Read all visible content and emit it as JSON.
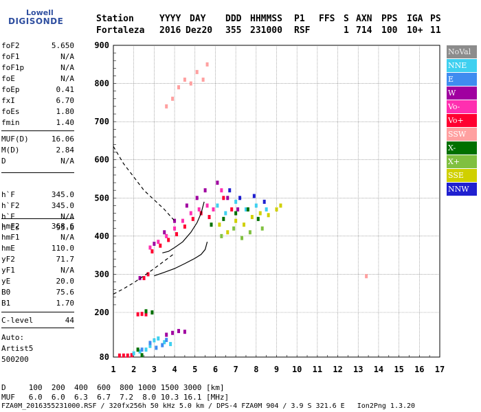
{
  "logo": {
    "line1": "Lowell",
    "line2": "DIGISONDE"
  },
  "header": {
    "labels": [
      "Station",
      "YYYY",
      "DAY",
      "DDD",
      "HHMMSS",
      "P1",
      "FFS",
      "S",
      "AXN",
      "PPS",
      "IGA",
      "PS"
    ],
    "values": [
      "Fortaleza",
      "2016",
      "Dez20",
      "355",
      "231000",
      "RSF",
      "",
      "1",
      "714",
      "100",
      "10+",
      "11"
    ]
  },
  "params_group1": [
    {
      "name": "foF2",
      "value": "5.650"
    },
    {
      "name": "foF1",
      "value": "N/A"
    },
    {
      "name": "foF1p",
      "value": "N/A"
    },
    {
      "name": "foE",
      "value": "N/A"
    },
    {
      "name": "foEp",
      "value": "0.41"
    },
    {
      "name": "fxI",
      "value": "6.70"
    },
    {
      "name": "foEs",
      "value": "1.80"
    },
    {
      "name": "fmin",
      "value": "1.40"
    }
  ],
  "params_group2": [
    {
      "name": "MUF(D)",
      "value": "16.06"
    },
    {
      "name": "M(D)",
      "value": "2.84"
    },
    {
      "name": "D",
      "value": "N/A"
    }
  ],
  "params_group3": [
    {
      "name": "h`F",
      "value": "345.0"
    },
    {
      "name": "h`F2",
      "value": "345.0"
    },
    {
      "name": "h`E",
      "value": "N/A"
    },
    {
      "name": "h`Es",
      "value": "95.0"
    }
  ],
  "params_group4": [
    {
      "name": "hmF2",
      "value": "368.6"
    },
    {
      "name": "hmF1",
      "value": "N/A"
    },
    {
      "name": "hmE",
      "value": "110.0"
    },
    {
      "name": "yF2",
      "value": "71.7"
    },
    {
      "name": "yF1",
      "value": "N/A"
    },
    {
      "name": "yE",
      "value": "20.0"
    },
    {
      "name": "B0",
      "value": "75.6"
    },
    {
      "name": "B1",
      "value": "1.70"
    }
  ],
  "params_group5": [
    {
      "name": "C-level",
      "value": "44"
    }
  ],
  "autoscale": {
    "line1": "Auto:",
    "line2": "Artist5",
    "line3": "500200"
  },
  "legend": [
    {
      "label": "NoVal",
      "color": "#8c8c8c"
    },
    {
      "label": "NNE",
      "color": "#3fd0f0"
    },
    {
      "label": "E",
      "color": "#3f8cf0"
    },
    {
      "label": "W",
      "color": "#a000a0"
    },
    {
      "label": "Vo-",
      "color": "#ff2fb0"
    },
    {
      "label": "Vo+",
      "color": "#ff0030"
    },
    {
      "label": "SSW",
      "color": "#ffa0a0"
    },
    {
      "label": "X-",
      "color": "#007000"
    },
    {
      "label": "X+",
      "color": "#80c040"
    },
    {
      "label": "SSE",
      "color": "#d0d000"
    },
    {
      "label": "NNW",
      "color": "#2020d0"
    }
  ],
  "footer": {
    "d_row": "D     100  200  400  600  800 1000 1500 3000 [km]",
    "muf_row": "MUF   6.0  6.0  6.3  6.7  7.2  8.0 10.3 16.1 [MHz]",
    "status": "FZA0M_2016355231000.RSF / 320fx256h 50 kHz 5.0 km / DPS-4 FZA0M 904 / 3.9 S 321.6 E   Ion2Png 1.3.20"
  },
  "chart_data": {
    "type": "scatter",
    "x_ticks": [
      "1",
      "2",
      "3",
      "4",
      "5",
      "6",
      "7",
      "8",
      "9",
      "10",
      "11",
      "12",
      "13",
      "14",
      "15",
      "16",
      "17"
    ],
    "y_ticks": [
      "80",
      "200",
      "300",
      "400",
      "500",
      "600",
      "700",
      "800",
      "900"
    ],
    "xlim": [
      1,
      17
    ],
    "ylim": [
      80,
      900
    ],
    "grid": true,
    "series": [
      {
        "color_key": "Vo+",
        "points": [
          [
            1.3,
            84
          ],
          [
            1.5,
            84
          ],
          [
            1.7,
            84
          ],
          [
            1.9,
            85
          ],
          [
            2.2,
            195
          ],
          [
            2.4,
            196
          ],
          [
            2.6,
            195
          ],
          [
            2.5,
            290
          ],
          [
            2.7,
            300
          ]
        ]
      },
      {
        "color_key": "NNE",
        "points": [
          [
            2.0,
            90
          ],
          [
            2.3,
            95
          ],
          [
            2.6,
            100
          ],
          [
            2.8,
            110
          ],
          [
            3.0,
            125
          ],
          [
            3.2,
            130
          ],
          [
            3.5,
            120
          ],
          [
            3.8,
            115
          ]
        ]
      },
      {
        "color_key": "E",
        "points": [
          [
            2.4,
            100
          ],
          [
            2.8,
            118
          ],
          [
            3.1,
            105
          ],
          [
            3.4,
            112
          ],
          [
            3.6,
            126
          ]
        ]
      },
      {
        "color_key": "W",
        "points": [
          [
            3.6,
            140
          ],
          [
            3.9,
            145
          ],
          [
            4.2,
            150
          ],
          [
            4.5,
            148
          ],
          [
            2.3,
            290
          ]
        ]
      },
      {
        "color_key": "X-",
        "points": [
          [
            2.4,
            85
          ],
          [
            2.2,
            100
          ],
          [
            2.6,
            203
          ],
          [
            2.9,
            200
          ]
        ]
      },
      {
        "color_key": "SSW",
        "points": [
          [
            3.6,
            740
          ],
          [
            3.9,
            760
          ],
          [
            4.2,
            790
          ],
          [
            4.5,
            810
          ],
          [
            4.8,
            800
          ],
          [
            5.1,
            830
          ],
          [
            5.4,
            810
          ],
          [
            5.6,
            850
          ],
          [
            13.4,
            295
          ]
        ]
      },
      {
        "color_key": "Vo-",
        "points": [
          [
            2.8,
            370
          ],
          [
            3.2,
            385
          ],
          [
            3.6,
            400
          ],
          [
            4.0,
            420
          ],
          [
            4.4,
            440
          ],
          [
            4.8,
            460
          ],
          [
            5.2,
            470
          ],
          [
            5.6,
            480
          ],
          [
            5.9,
            470
          ],
          [
            6.3,
            520
          ]
        ]
      },
      {
        "color_key": "Vo+",
        "points": [
          [
            2.9,
            360
          ],
          [
            3.3,
            375
          ],
          [
            3.7,
            390
          ],
          [
            4.1,
            405
          ],
          [
            4.5,
            425
          ],
          [
            4.9,
            445
          ],
          [
            5.3,
            460
          ],
          [
            5.7,
            450
          ],
          [
            6.4,
            500
          ],
          [
            6.8,
            470
          ]
        ]
      },
      {
        "color_key": "W",
        "points": [
          [
            3.0,
            380
          ],
          [
            3.5,
            410
          ],
          [
            4.0,
            440
          ],
          [
            4.6,
            480
          ],
          [
            5.1,
            500
          ],
          [
            5.5,
            520
          ],
          [
            6.1,
            540
          ],
          [
            6.6,
            500
          ],
          [
            7.1,
            470
          ]
        ]
      },
      {
        "color_key": "SSE",
        "points": [
          [
            6.2,
            430
          ],
          [
            6.6,
            410
          ],
          [
            7.0,
            440
          ],
          [
            7.4,
            430
          ],
          [
            7.8,
            450
          ],
          [
            8.2,
            460
          ],
          [
            8.6,
            455
          ],
          [
            9.0,
            470
          ],
          [
            9.2,
            480
          ]
        ]
      },
      {
        "color_key": "NNE",
        "points": [
          [
            6.1,
            480
          ],
          [
            6.5,
            460
          ],
          [
            7.0,
            490
          ],
          [
            7.5,
            470
          ],
          [
            8.0,
            480
          ],
          [
            8.5,
            470
          ]
        ]
      },
      {
        "color_key": "X+",
        "points": [
          [
            6.3,
            400
          ],
          [
            6.9,
            420
          ],
          [
            7.3,
            395
          ],
          [
            7.7,
            410
          ],
          [
            8.3,
            420
          ]
        ]
      },
      {
        "color_key": "NNW",
        "points": [
          [
            6.7,
            520
          ],
          [
            7.2,
            500
          ],
          [
            7.9,
            505
          ],
          [
            8.4,
            490
          ]
        ]
      },
      {
        "color_key": "X-",
        "points": [
          [
            5.8,
            430
          ],
          [
            6.4,
            445
          ],
          [
            7.0,
            460
          ],
          [
            7.6,
            470
          ],
          [
            8.1,
            445
          ]
        ]
      }
    ],
    "curves": [
      {
        "name": "",
        "style": "dashed",
        "points": [
          [
            1.0,
            635
          ],
          [
            1.5,
            590
          ],
          [
            2.0,
            555
          ],
          [
            2.5,
            520
          ],
          [
            3.0,
            495
          ],
          [
            3.5,
            470
          ],
          [
            4.0,
            440
          ]
        ]
      },
      {
        "name": "",
        "style": "dashed",
        "points": [
          [
            1.0,
            248
          ],
          [
            1.5,
            262
          ],
          [
            2.0,
            278
          ],
          [
            2.5,
            296
          ],
          [
            3.0,
            315
          ],
          [
            3.5,
            335
          ],
          [
            4.0,
            355
          ]
        ]
      },
      {
        "name": "",
        "style": "solid",
        "points": [
          [
            3.0,
            296
          ],
          [
            3.5,
            305
          ],
          [
            4.0,
            315
          ],
          [
            4.5,
            328
          ],
          [
            5.0,
            342
          ],
          [
            5.3,
            352
          ],
          [
            5.5,
            365
          ],
          [
            5.6,
            385
          ]
        ]
      },
      {
        "name": "",
        "style": "solid",
        "points": [
          [
            3.4,
            356
          ],
          [
            3.7,
            360
          ],
          [
            4.0,
            370
          ],
          [
            4.4,
            385
          ],
          [
            4.8,
            410
          ],
          [
            5.1,
            435
          ],
          [
            5.3,
            460
          ],
          [
            5.45,
            490
          ]
        ]
      }
    ]
  }
}
